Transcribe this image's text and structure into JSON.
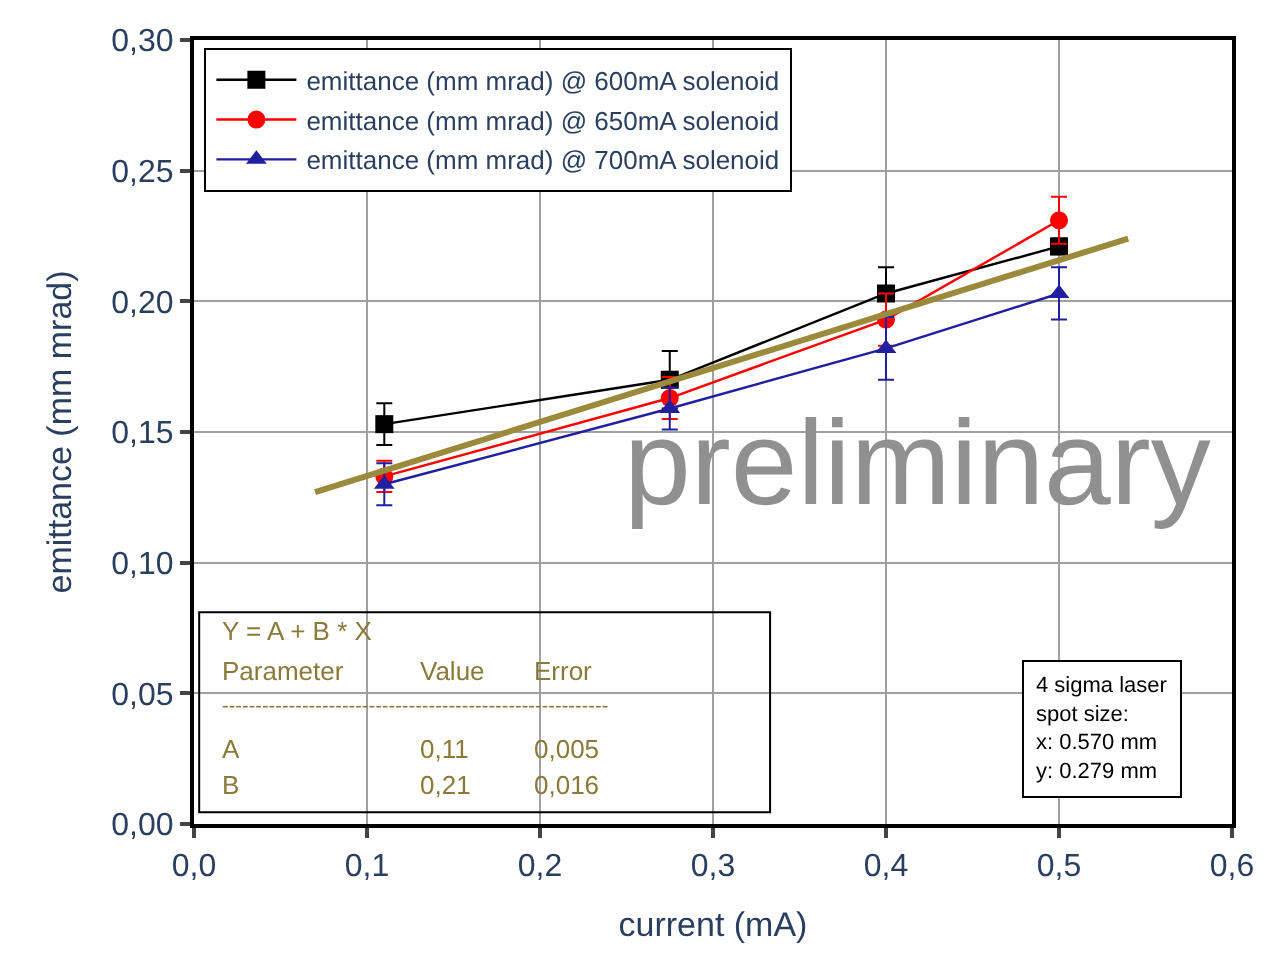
{
  "chart_data": {
    "type": "line",
    "xlabel": "current (mA)",
    "ylabel": "emittance (mm mrad)",
    "x": [
      0.11,
      0.275,
      0.4,
      0.5
    ],
    "xlim": [
      0.0,
      0.6
    ],
    "xticks": [
      {
        "value": 0.0,
        "label": "0,0"
      },
      {
        "value": 0.1,
        "label": "0,1"
      },
      {
        "value": 0.2,
        "label": "0,2"
      },
      {
        "value": 0.3,
        "label": "0,3"
      },
      {
        "value": 0.4,
        "label": "0,4"
      },
      {
        "value": 0.5,
        "label": "0,5"
      },
      {
        "value": 0.6,
        "label": "0,6"
      }
    ],
    "ylim": [
      0.0,
      0.3
    ],
    "yticks": [
      {
        "value": 0.0,
        "label": "0,00"
      },
      {
        "value": 0.05,
        "label": "0,05"
      },
      {
        "value": 0.1,
        "label": "0,10"
      },
      {
        "value": 0.15,
        "label": "0,15"
      },
      {
        "value": 0.2,
        "label": "0,20"
      },
      {
        "value": 0.25,
        "label": "0,25"
      },
      {
        "value": 0.3,
        "label": "0,30"
      }
    ],
    "grid": true,
    "legend": "top left",
    "line_style": "solid",
    "series": [
      {
        "name": "emittance (mm mrad) @ 600mA solenoid",
        "color": "#000000",
        "marker": "square",
        "values": [
          0.153,
          0.17,
          0.203,
          0.221
        ],
        "errors": [
          0.008,
          0.011,
          0.01,
          0.003
        ]
      },
      {
        "name": "emittance (mm mrad) @ 650mA solenoid",
        "color": "#ff0000",
        "marker": "circle",
        "values": [
          0.133,
          0.163,
          0.193,
          0.231
        ],
        "errors": [
          0.006,
          0.008,
          0.01,
          0.009
        ]
      },
      {
        "name": "emittance (mm mrad) @ 700mA solenoid",
        "color": "#1f1f9f",
        "marker": "triangle",
        "values": [
          0.13,
          0.159,
          0.182,
          0.203
        ],
        "errors": [
          0.008,
          0.008,
          0.012,
          0.01
        ]
      },
      {
        "type": "line",
        "color": "#9c8a3c",
        "marker": "none",
        "x": [
          0.07,
          0.54
        ],
        "values": [
          0.127,
          0.224
        ]
      }
    ],
    "annotations": [
      "preliminary",
      "Y = A + B * X",
      "Parameter",
      "Value",
      "Error",
      "----------------------------------------------------------",
      "A",
      "0,11",
      "0,005",
      "B",
      "0,21",
      "0,016",
      "4 sigma laser\nspot size:\nx: 0.570 mm\ny: 0.279 mm"
    ]
  }
}
